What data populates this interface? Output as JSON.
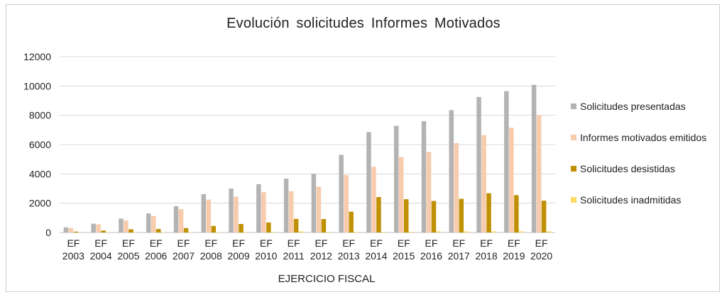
{
  "chart_data": {
    "type": "bar",
    "title": "Evolución  solicitudes  Informes  Motivados",
    "xlabel": "EJERCICIO FISCAL",
    "ylabel": "",
    "ylim": [
      0,
      12000
    ],
    "yticks": [
      0,
      2000,
      4000,
      6000,
      8000,
      10000,
      12000
    ],
    "grid": true,
    "legend_position": "right",
    "categories": [
      [
        "EF",
        "2003"
      ],
      [
        "EF",
        "2004"
      ],
      [
        "EF",
        "2005"
      ],
      [
        "EF",
        "2006"
      ],
      [
        "EF",
        "2007"
      ],
      [
        "EF",
        "2008"
      ],
      [
        "EF",
        "2009"
      ],
      [
        "EF",
        "2010"
      ],
      [
        "EF",
        "2011"
      ],
      [
        "EF",
        "2012"
      ],
      [
        "EF",
        "2013"
      ],
      [
        "EF",
        "2014"
      ],
      [
        "EF",
        "2015"
      ],
      [
        "EF",
        "2016"
      ],
      [
        "EF",
        "2017"
      ],
      [
        "EF",
        "2018"
      ],
      [
        "EF",
        "2019"
      ],
      [
        "EF",
        "2020"
      ]
    ],
    "series": [
      {
        "name": "Solicitudes presentadas",
        "color": "#b3b3b3",
        "values": [
          350,
          600,
          950,
          1300,
          1800,
          2620,
          3000,
          3300,
          3680,
          4000,
          5300,
          6850,
          7280,
          7600,
          8350,
          9250,
          9650,
          10080
        ]
      },
      {
        "name": "Informes motivados emitidos",
        "color": "#f8cbad",
        "values": [
          300,
          560,
          820,
          1130,
          1600,
          2250,
          2450,
          2750,
          2820,
          3130,
          3920,
          4480,
          5150,
          5500,
          6100,
          6650,
          7150,
          8000
        ]
      },
      {
        "name": "Solicitudes desistidas",
        "color": "#bf9000",
        "values": [
          60,
          130,
          220,
          240,
          300,
          450,
          580,
          680,
          930,
          920,
          1420,
          2420,
          2270,
          2150,
          2300,
          2680,
          2550,
          2170
        ]
      },
      {
        "name": "Solicitudes inadmitidas",
        "color": "#ffd966",
        "values": [
          10,
          15,
          20,
          20,
          25,
          30,
          30,
          35,
          80,
          40,
          40,
          40,
          45,
          80,
          80,
          80,
          80,
          80
        ]
      }
    ]
  }
}
